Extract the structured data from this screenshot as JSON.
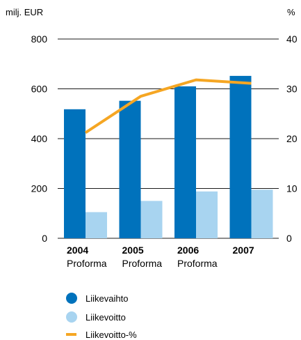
{
  "chart_data": {
    "type": "bar",
    "left_axis_unit": "milj. EUR",
    "right_axis_unit": "%",
    "left_ylim": [
      0,
      800
    ],
    "right_ylim": [
      0,
      40
    ],
    "left_ticks": [
      "0",
      "200",
      "400",
      "600",
      "800"
    ],
    "right_ticks": [
      "0",
      "10",
      "20",
      "30",
      "40"
    ],
    "grid": "horizontal",
    "legend_position": "bottom-left",
    "categories": [
      {
        "year": "2004",
        "sub": "Proforma"
      },
      {
        "year": "2005",
        "sub": "Proforma"
      },
      {
        "year": "2006",
        "sub": "Proforma"
      },
      {
        "year": "2007",
        "sub": ""
      }
    ],
    "series": [
      {
        "name": "Liikevaihto",
        "kind": "bar",
        "axis": "left",
        "color": "#0072bc",
        "values": [
          518,
          552,
          610,
          652
        ]
      },
      {
        "name": "Liikevoitto",
        "kind": "bar",
        "axis": "left",
        "color": "#a8d4f0",
        "values": [
          105,
          150,
          188,
          195
        ]
      },
      {
        "name": "Liikevoitto-%",
        "kind": "line",
        "axis": "right",
        "color": "#f5a623",
        "values": [
          21.2,
          28.5,
          31.8,
          31.1
        ]
      }
    ]
  }
}
